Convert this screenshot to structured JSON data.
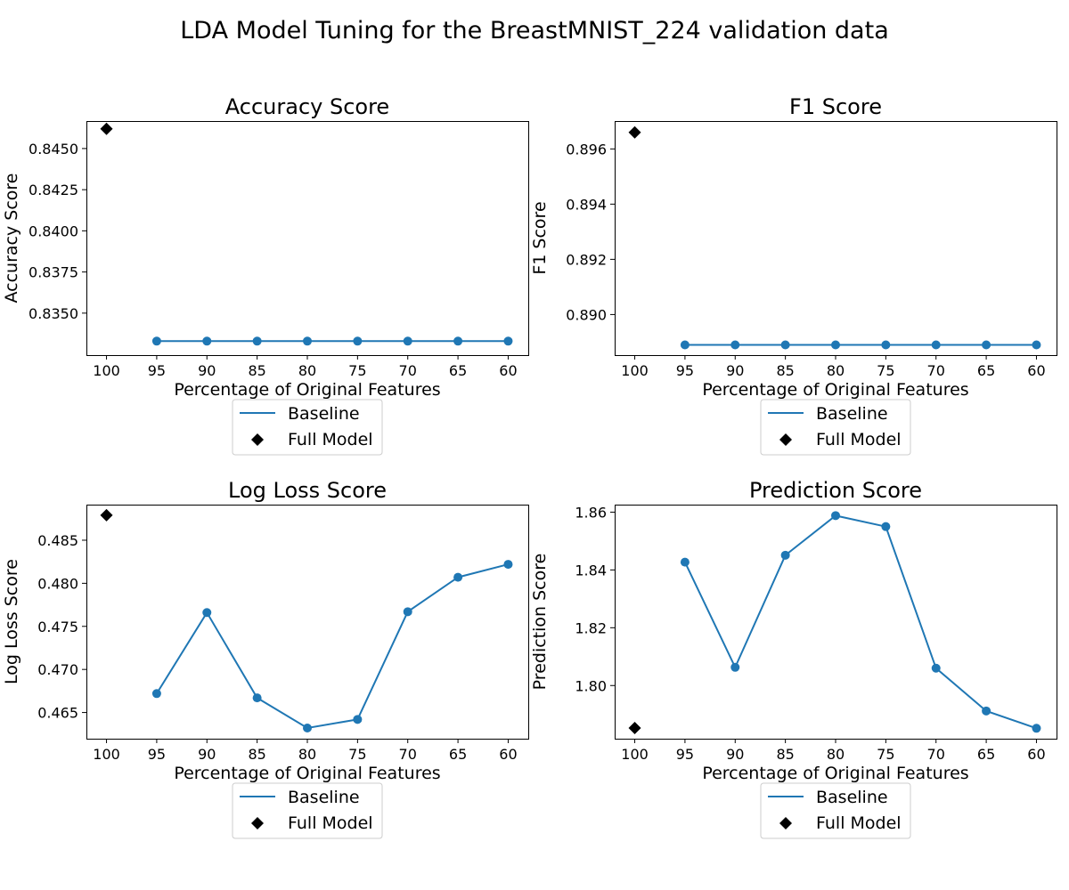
{
  "figure": {
    "suptitle": "LDA Model Tuning for the BreastMNIST_224 validation data"
  },
  "chart_data": [
    {
      "type": "line",
      "title": "Accuracy Score",
      "xlabel": "Percentage of Original Features",
      "ylabel": "Accuracy Score",
      "x_ticks": [
        "100",
        "95",
        "90",
        "85",
        "80",
        "75",
        "70",
        "65",
        "60"
      ],
      "xlim": [
        -0.4,
        8.4
      ],
      "ylim": [
        0.83245,
        0.84667
      ],
      "y_ticks": [
        0.835,
        0.8375,
        0.84,
        0.8425,
        0.845
      ],
      "y_tick_labels": [
        "0.8350",
        "0.8375",
        "0.8400",
        "0.8425",
        "0.8450"
      ],
      "series": [
        {
          "name": "Baseline",
          "x": [
            "95",
            "90",
            "85",
            "80",
            "75",
            "70",
            "65",
            "60"
          ],
          "values": [
            0.8333,
            0.8333,
            0.8333,
            0.8333,
            0.8333,
            0.8333,
            0.8333,
            0.8333
          ],
          "color": "#1f77b4",
          "marker": "circle"
        },
        {
          "name": "Full Model",
          "x": [
            "100"
          ],
          "values": [
            0.8462
          ],
          "color": "#000000",
          "marker": "diamond"
        }
      ],
      "legend": {
        "placement": "below",
        "entries": [
          "Baseline",
          "Full Model"
        ]
      }
    },
    {
      "type": "line",
      "title": "F1 Score",
      "xlabel": "Percentage of Original Features",
      "ylabel": "F1 Score",
      "x_ticks": [
        "100",
        "95",
        "90",
        "85",
        "80",
        "75",
        "70",
        "65",
        "60"
      ],
      "xlim": [
        -0.4,
        8.4
      ],
      "ylim": [
        0.88853,
        0.89701
      ],
      "y_ticks": [
        0.89,
        0.892,
        0.894,
        0.896
      ],
      "y_tick_labels": [
        "0.890",
        "0.892",
        "0.894",
        "0.896"
      ],
      "series": [
        {
          "name": "Baseline",
          "x": [
            "95",
            "90",
            "85",
            "80",
            "75",
            "70",
            "65",
            "60"
          ],
          "values": [
            0.8889,
            0.8889,
            0.8889,
            0.8889,
            0.8889,
            0.8889,
            0.8889,
            0.8889
          ],
          "color": "#1f77b4",
          "marker": "circle"
        },
        {
          "name": "Full Model",
          "x": [
            "100"
          ],
          "values": [
            0.8966
          ],
          "color": "#000000",
          "marker": "diamond"
        }
      ],
      "legend": {
        "placement": "below",
        "entries": [
          "Baseline",
          "Full Model"
        ]
      }
    },
    {
      "type": "line",
      "title": "Log Loss Score",
      "xlabel": "Percentage of Original Features",
      "ylabel": "Log Loss Score",
      "x_ticks": [
        "100",
        "95",
        "90",
        "85",
        "80",
        "75",
        "70",
        "65",
        "60"
      ],
      "xlim": [
        -0.4,
        8.4
      ],
      "ylim": [
        0.46196,
        0.48913
      ],
      "y_ticks": [
        0.465,
        0.47,
        0.475,
        0.48,
        0.485
      ],
      "y_tick_labels": [
        "0.465",
        "0.470",
        "0.475",
        "0.480",
        "0.485"
      ],
      "series": [
        {
          "name": "Baseline",
          "x": [
            "95",
            "90",
            "85",
            "80",
            "75",
            "70",
            "65",
            "60"
          ],
          "values": [
            0.4672,
            0.4766,
            0.4667,
            0.4632,
            0.4642,
            0.4767,
            0.4807,
            0.4822
          ],
          "color": "#1f77b4",
          "marker": "circle"
        },
        {
          "name": "Full Model",
          "x": [
            "100"
          ],
          "values": [
            0.4879
          ],
          "color": "#000000",
          "marker": "diamond"
        }
      ],
      "legend": {
        "placement": "below",
        "entries": [
          "Baseline",
          "Full Model"
        ]
      }
    },
    {
      "type": "line",
      "title": "Prediction Score",
      "xlabel": "Percentage of Original Features",
      "ylabel": "Prediction Score",
      "x_ticks": [
        "100",
        "95",
        "90",
        "85",
        "80",
        "75",
        "70",
        "65",
        "60"
      ],
      "xlim": [
        -0.4,
        8.4
      ],
      "ylim": [
        1.7816,
        1.8626
      ],
      "y_ticks": [
        1.8,
        1.82,
        1.84,
        1.86
      ],
      "y_tick_labels": [
        "1.80",
        "1.82",
        "1.84",
        "1.86"
      ],
      "series": [
        {
          "name": "Baseline",
          "x": [
            "95",
            "90",
            "85",
            "80",
            "75",
            "70",
            "65",
            "60"
          ],
          "values": [
            1.8427,
            1.8063,
            1.8451,
            1.8588,
            1.855,
            1.806,
            1.7912,
            1.7852
          ],
          "color": "#1f77b4",
          "marker": "circle"
        },
        {
          "name": "Full Model",
          "x": [
            "100"
          ],
          "values": [
            1.7853
          ],
          "color": "#000000",
          "marker": "diamond"
        }
      ],
      "legend": {
        "placement": "below",
        "entries": [
          "Baseline",
          "Full Model"
        ]
      }
    }
  ]
}
